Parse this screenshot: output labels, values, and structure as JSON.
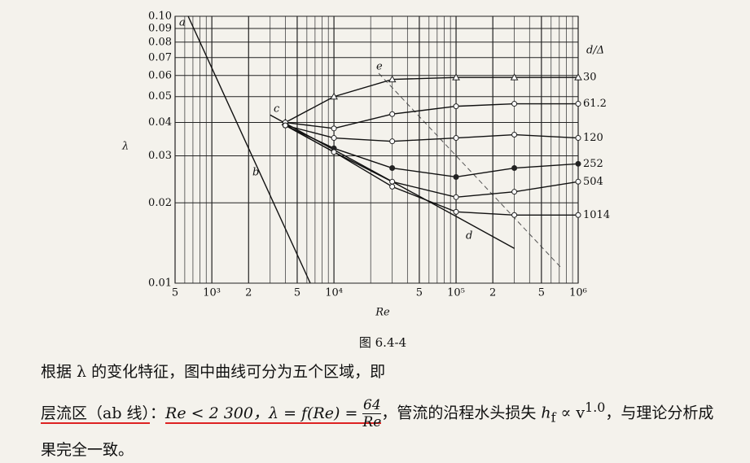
{
  "figure": {
    "type": "line",
    "y_label": "λ",
    "x_label": "Re",
    "legend_title": "d/Δ",
    "caption": "图 6.4-4",
    "log_x": true,
    "log_y": true,
    "grid": true,
    "xlim": [
      500,
      1000000
    ],
    "ylim": [
      0.01,
      0.1
    ],
    "xticks": [
      {
        "value": 500,
        "label": "5"
      },
      {
        "value": 1000,
        "label": "10³"
      },
      {
        "value": 2000,
        "label": "2"
      },
      {
        "value": 5000,
        "label": "5"
      },
      {
        "value": 10000,
        "label": "10⁴"
      },
      {
        "value": 50000,
        "label": "5"
      },
      {
        "value": 100000,
        "label": "10⁵"
      },
      {
        "value": 200000,
        "label": "2"
      },
      {
        "value": 500000,
        "label": "5"
      },
      {
        "value": 1000000,
        "label": "10⁶"
      }
    ],
    "x_minor_ticks": [
      600,
      700,
      800,
      900,
      3000,
      4000,
      6000,
      7000,
      8000,
      9000,
      20000,
      30000,
      40000,
      60000,
      70000,
      80000,
      90000,
      300000,
      400000,
      600000,
      700000,
      800000,
      900000
    ],
    "yticks": [
      0.01,
      0.02,
      0.03,
      0.04,
      0.05,
      0.06,
      0.07,
      0.08,
      0.09,
      {
        "value": 0.1,
        "label": "0.10"
      }
    ],
    "laminar": {
      "x": [
        640,
        6400
      ],
      "values": [
        0.1,
        0.01
      ]
    },
    "smooth": {
      "x": [
        3000,
        10000,
        100000,
        300000
      ],
      "values": [
        0.0427,
        0.0316,
        0.0178,
        0.0135
      ]
    },
    "re": [
      4000,
      10000,
      30000,
      100000,
      300000,
      1000000
    ],
    "series": [
      {
        "name": "30",
        "color": "#222",
        "marker": "triangle",
        "values": [
          0.04,
          0.05,
          0.058,
          0.059,
          0.059,
          0.059
        ]
      },
      {
        "name": "61.2",
        "color": "#222",
        "marker": "circle",
        "values": [
          0.04,
          0.038,
          0.043,
          0.046,
          0.047,
          0.047
        ]
      },
      {
        "name": "120",
        "color": "#222",
        "marker": "circle",
        "values": [
          0.039,
          0.035,
          0.034,
          0.035,
          0.036,
          0.035
        ]
      },
      {
        "name": "252",
        "color": "#222",
        "marker": "dot",
        "values": [
          0.039,
          0.032,
          0.027,
          0.025,
          0.027,
          0.028
        ]
      },
      {
        "name": "504",
        "color": "#222",
        "marker": "circle",
        "values": [
          0.039,
          0.031,
          0.024,
          0.021,
          0.022,
          0.024
        ]
      },
      {
        "name": "1014",
        "color": "#222",
        "marker": "circle",
        "values": [
          0.039,
          0.031,
          0.023,
          0.0185,
          0.018,
          0.018
        ]
      }
    ],
    "annotations": [
      "a",
      "b",
      "c",
      "d",
      "e"
    ]
  },
  "text": {
    "line1": "根据 λ 的变化特征，图中曲线可分为五个区域，即",
    "line2": {
      "head": "层流区（ab 线）",
      "colon": "：",
      "formula": "Re < 2 300，λ = f(Re) = ",
      "num": "64",
      "den": "Re",
      "rest1": "，管流的沿程水头损失 ",
      "h": "h",
      "sub": "f",
      "prop": " ∝ v",
      "sup": "1.0",
      "rest2": "，与理论分析成"
    },
    "line3": "果完全一致。"
  }
}
